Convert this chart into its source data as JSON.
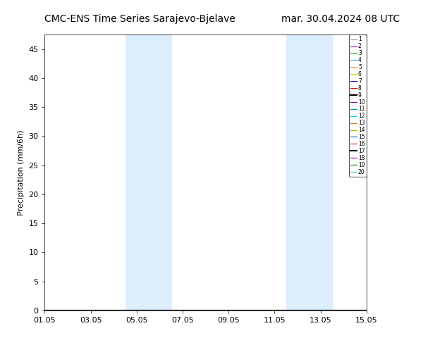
{
  "title_left": "CMC-ENS Time Series Sarajevo-Bjelave",
  "title_right": "mar. 30.04.2024 08 UTC",
  "ylabel": "Precipitation (mm/6h)",
  "ylim": [
    0,
    47.5
  ],
  "yticks": [
    0,
    5,
    10,
    15,
    20,
    25,
    30,
    35,
    40,
    45
  ],
  "xtick_labels": [
    "01.05",
    "03.05",
    "05.05",
    "07.05",
    "09.05",
    "11.05",
    "13.05",
    "15.05"
  ],
  "xtick_positions": [
    0,
    2,
    4,
    6,
    8,
    10,
    12,
    14
  ],
  "xlim": [
    0,
    14
  ],
  "shaded_regions": [
    {
      "xmin": 3.5,
      "xmax": 4.5
    },
    {
      "xmin": 4.5,
      "xmax": 5.5
    },
    {
      "xmin": 10.5,
      "xmax": 11.5
    },
    {
      "xmin": 11.5,
      "xmax": 12.5
    }
  ],
  "shade_color": "#ddeeff",
  "legend_colors": [
    "#999999",
    "#cc00cc",
    "#00aa00",
    "#00bbff",
    "#ff9900",
    "#cccc00",
    "#0000cc",
    "#cc0000",
    "#000000",
    "#990099",
    "#009999",
    "#00ccff",
    "#cc8800",
    "#aaaa00",
    "#0055cc",
    "#cc2200",
    "#000000",
    "#880088",
    "#008800",
    "#00cccc"
  ],
  "legend_labels": [
    "1",
    "2",
    "3",
    "4",
    "5",
    "6",
    "7",
    "8",
    "9",
    "10",
    "11",
    "12",
    "13",
    "14",
    "15",
    "16",
    "17",
    "18",
    "19",
    "20"
  ],
  "plot_bg": "#ffffff",
  "title_fontsize": 10,
  "axis_fontsize": 8,
  "ylabel_fontsize": 8
}
